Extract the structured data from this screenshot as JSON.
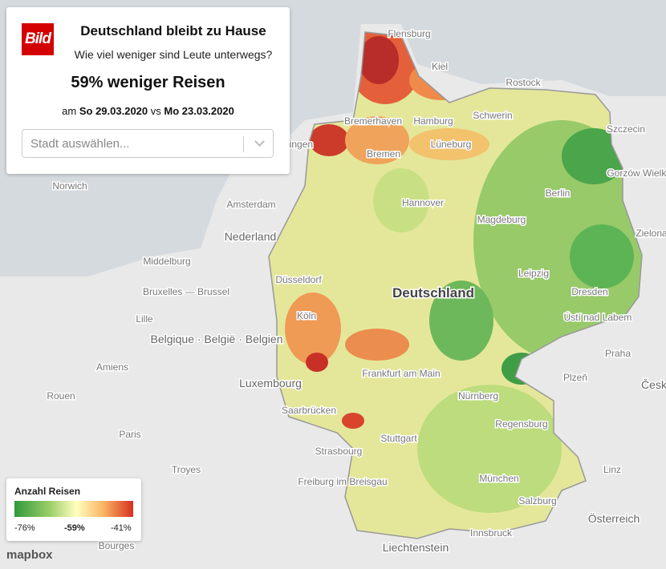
{
  "panel": {
    "logo": "Bild",
    "title": "Deutschland bleibt zu Hause",
    "subtitle": "Wie viel weniger sind Leute unterwegs?",
    "headline": "59% weniger Reisen",
    "date": {
      "prefix": "am",
      "day1": "So 29.03.2020",
      "separator": "vs",
      "day2": "Mo 23.03.2020"
    },
    "select_placeholder": "Stadt auswählen..."
  },
  "legend": {
    "title": "Anzahl Reisen",
    "ticks": [
      "-76%",
      "-59%",
      "-41%"
    ]
  },
  "map_labels": {
    "country": [
      "Deutschland",
      "Nederland",
      "Belgique · België · Belgien",
      "Luxembourg",
      "Česk",
      "Österreich",
      "Liechtenstein"
    ],
    "city": [
      "Flensburg",
      "Kiel",
      "Rostock",
      "Bremerhaven",
      "Hamburg",
      "Schwerin",
      "Szczecin",
      "Bremen",
      "Lüneburg",
      "Berlin",
      "Hannover",
      "Magdeburg",
      "Amsterdam",
      "Norwich",
      "Middelburg",
      "Düsseldorf",
      "Leipzig",
      "Dresden",
      "Bruxelles — Brussel",
      "Lille",
      "Köln",
      "Ústí nad Labem",
      "Praha",
      "Amiens",
      "Frankfurt am Main",
      "Plzeň",
      "Rouen",
      "Nürnberg",
      "Saarbrücken",
      "Paris",
      "Regensburg",
      "Stuttgart",
      "Strasbourg",
      "Troyes",
      "Freiburg im Breisgau",
      "München",
      "Linz",
      "Salzburg",
      "Innsbruck",
      "Bourges",
      "Gorzów Wielkopolski",
      "Zielona",
      "Groningen"
    ]
  },
  "attribution": "mapbox"
}
